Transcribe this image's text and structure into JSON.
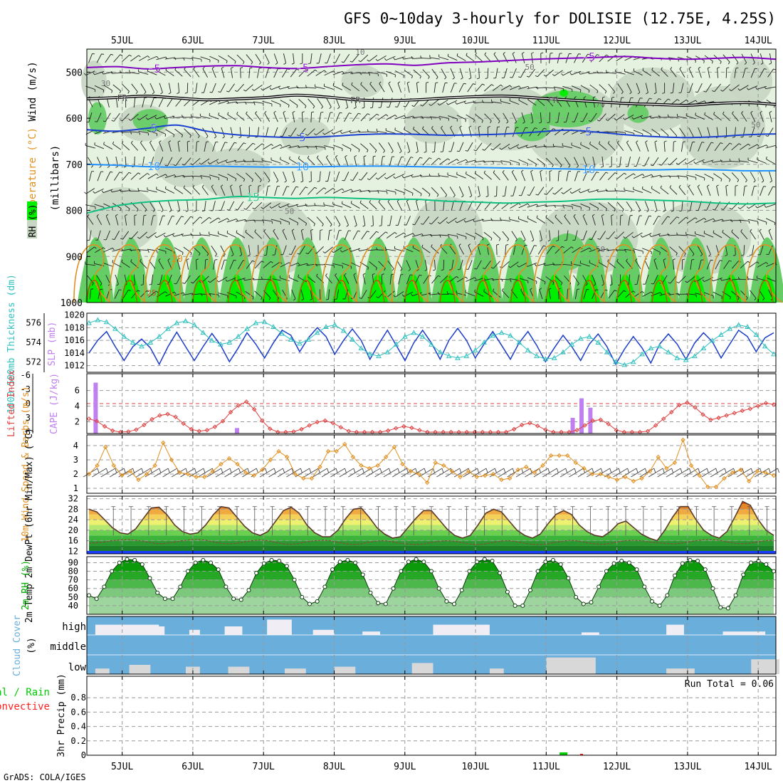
{
  "title": "GFS 0~10day 3-hourly for DOLISIE (12.75E, 4.25S)",
  "credit": "GrADS: COLA/IGES",
  "colors": {
    "rh_light": "#e6f2e0",
    "rh_mid": "#c8d6c4",
    "rh_green": "#66cc66",
    "rh_bright": "#00ee00",
    "t_minus5": "#8000c0",
    "t_fr": "#000000",
    "t_5": "#1a40d0",
    "t_10": "#1e90ff",
    "t_15": "#10c080",
    "t_20": "#e09020",
    "t_25": "#c05010",
    "slp": "#1a3cc8",
    "thickness": "#30c0c0",
    "cape": "#c080f0",
    "lifted": "#e04040",
    "wind10": "#e09020",
    "rh2m": "#00aa00",
    "cloud_bg": "#6aaedc",
    "cloud_fill": "#f0eef4",
    "cloud_low": "#d8d8d8",
    "precip_total": "#00cc00",
    "precip_conv": "#ff2020"
  },
  "chart_data": {
    "time_axis": {
      "start_day": 4.5,
      "end_day": 14.25,
      "step_hours": 3,
      "tick_labels": [
        "5JUL",
        "6JUL",
        "7JUL",
        "8JUL",
        "9JUL",
        "10JUL",
        "11JUL",
        "12JUL",
        "13JUL",
        "14JUL"
      ],
      "tick_days": [
        5,
        6,
        7,
        8,
        9,
        10,
        11,
        12,
        13,
        14
      ]
    },
    "panels": [
      {
        "id": "upper_air",
        "type": "heatmap",
        "ylabel": "(millibars)",
        "legend_labels": [
          "RH (%)",
          "Temperature (°C)",
          "Wind (m/s)"
        ],
        "y_ticks": [
          500,
          600,
          700,
          800,
          900,
          1000
        ],
        "ylim": [
          450,
          1000
        ],
        "rh_contour_labels": [
          "10",
          "30",
          "50",
          "70"
        ],
        "temperature_isotherms": [
          {
            "label": "-5",
            "pressure": [
              490,
              488,
              493,
              490,
              487,
              486,
              490,
              492,
              488,
              484,
              482,
              485,
              480,
              478,
              475,
              472,
              470,
              468,
              466,
              470,
              472,
              470,
              468,
              472
            ]
          },
          {
            "label": "FR",
            "pressure": [
              558,
              555,
              552,
              556,
              560,
              558,
              555,
              550,
              554,
              560,
              562,
              560,
              556,
              553,
              552,
              556,
              560,
              564,
              568,
              570,
              572,
              568,
              566,
              570
            ]
          },
          {
            "label": "5",
            "pressure": [
              625,
              628,
              622,
              615,
              628,
              636,
              640,
              642,
              640,
              636,
              634,
              635,
              637,
              636,
              634,
              630,
              626,
              630,
              636,
              640,
              642,
              640,
              636,
              634
            ]
          },
          {
            "label": "10",
            "pressure": [
              700,
              702,
              705,
              706,
              704,
              705,
              706,
              706,
              705,
              704,
              704,
              705,
              706,
              707,
              708,
              709,
              710,
              712,
              712,
              712,
              711,
              712,
              714,
              714
            ]
          },
          {
            "label": "15",
            "pressure": [
              806,
              790,
              782,
              778,
              776,
              770,
              772,
              774,
              772,
              774,
              776,
              776,
              780,
              782,
              784,
              782,
              780,
              776,
              776,
              778,
              780,
              784,
              786,
              784
            ]
          }
        ],
        "temperature_label_20": "20",
        "temperature_label_25": "25"
      },
      {
        "id": "slp_thickness",
        "type": "line",
        "ylabel_left": "1000-500mb Thickness (dm)",
        "ylabel_right": "SLP (mb)",
        "left_ticks": [
          572,
          574,
          576
        ],
        "right_ticks": [
          1012,
          1014,
          1016,
          1018,
          1020
        ],
        "series": [
          {
            "name": "SLP (mb)",
            "values": [
              1014.0,
              1016.0,
              1017.4,
              1015.0,
              1012.8,
              1015.0,
              1016.2,
              1014.8,
              1012.2,
              1015.0,
              1017.3,
              1015.0,
              1012.8,
              1015.0,
              1017.1,
              1015.2,
              1012.6,
              1014.8,
              1017.2,
              1015.4,
              1013.2,
              1015.6,
              1017.6,
              1016.8,
              1014.2,
              1016.4,
              1018.0,
              1016.6,
              1013.8,
              1016.0,
              1017.8,
              1016.0,
              1013.0,
              1015.4,
              1017.6,
              1015.2,
              1012.8,
              1015.6,
              1017.6,
              1015.6,
              1013.0,
              1016.0,
              1017.9,
              1016.0,
              1013.2,
              1015.4,
              1017.4,
              1015.2,
              1013.0,
              1015.6,
              1017.4,
              1015.2,
              1012.6,
              1014.8,
              1016.8,
              1015.0,
              1012.8,
              1015.4,
              1017.0,
              1015.0,
              1012.2,
              1014.6,
              1016.6,
              1014.8,
              1012.4,
              1015.4,
              1017.0,
              1015.4,
              1013.0,
              1015.6,
              1017.2,
              1015.8,
              1013.2,
              1015.4,
              1017.6,
              1016.6,
              1014.2,
              1016.4,
              1017.2
            ]
          },
          {
            "name": "1000-500mb Thickness (dm)",
            "values": [
              576.0,
              576.3,
              576.1,
              575.4,
              574.6,
              574.0,
              573.6,
              574.0,
              574.6,
              575.4,
              576.0,
              576.2,
              575.8,
              575.0,
              574.2,
              573.8,
              574.0,
              574.6,
              575.4,
              576.0,
              576.1,
              575.6,
              574.9,
              574.3,
              573.9,
              574.3,
              575.0,
              575.6,
              575.8,
              575.2,
              574.3,
              573.4,
              572.8,
              572.6,
              573.0,
              573.8,
              574.6,
              575.0,
              574.6,
              573.8,
              573.0,
              572.6,
              572.4,
              572.6,
              573.2,
              574.0,
              574.7,
              575.0,
              574.7,
              574.0,
              573.2,
              572.6,
              572.3,
              572.4,
              573.0,
              573.8,
              574.4,
              574.6,
              574.0,
              573.0,
              572.0,
              571.7,
              572.0,
              572.8,
              573.4,
              573.6,
              573.0,
              572.4,
              572.2,
              572.6,
              573.4,
              574.2,
              574.8,
              575.4,
              575.8,
              575.6,
              574.8,
              573.6,
              572.8
            ]
          }
        ]
      },
      {
        "id": "cape_li",
        "type": "bar",
        "ylabel_left": "Lifted Index",
        "ylabel_right": "CAPE (J/kg)",
        "left_ticks": [
          "-6",
          "-3",
          "0",
          "3",
          "6"
        ],
        "right_ticks": [
          2,
          4,
          6
        ],
        "series": [
          {
            "name": "CAPE (J/kg)",
            "days": [
              4.625,
              6.625,
              11.375,
              11.5,
              11.625
            ],
            "values": [
              7.0,
              1.2,
              2.5,
              5.0,
              3.8
            ]
          },
          {
            "name": "Lifted Index",
            "values": [
              3.2,
              3.7,
              4.8,
              5.7,
              6.0,
              5.9,
              5.5,
              4.5,
              3.3,
              2.5,
              2.2,
              2.8,
              4.2,
              5.4,
              5.8,
              5.6,
              4.9,
              3.7,
              1.8,
              0.4,
              -0.4,
              1.2,
              3.6,
              5.3,
              6.0,
              6.0,
              5.9,
              5.4,
              4.6,
              3.9,
              3.6,
              4.1,
              5.0,
              5.8,
              6.0,
              6.0,
              6.0,
              6.0,
              5.7,
              5.2,
              4.8,
              5.1,
              5.6,
              6.0,
              6.0,
              6.0,
              6.0,
              6.0,
              6.0,
              6.0,
              6.0,
              6.0,
              6.0,
              6.0,
              5.4,
              4.5,
              4.1,
              4.7,
              5.5,
              6.0,
              6.0,
              6.0,
              5.6,
              4.6,
              3.6,
              3.4,
              4.3,
              5.6,
              6.0,
              6.0,
              6.0,
              5.8,
              4.6,
              3.2,
              1.8,
              0.3,
              -0.2,
              0.8,
              2.3,
              3.4,
              3.0,
              2.5,
              2.0,
              1.5,
              1.1,
              0.5,
              -0.1,
              0.2
            ]
          }
        ]
      },
      {
        "id": "wind10m",
        "type": "line",
        "ylabel": "10m Wind Speed & Barbs (m/s)",
        "y_ticks": [
          1,
          2,
          3,
          4
        ],
        "series": [
          {
            "name": "10m Wind Speed (m/s)",
            "values": [
              2.0,
              2.6,
              3.9,
              2.6,
              1.9,
              2.2,
              1.6,
              2.0,
              2.6,
              4.2,
              3.0,
              2.1,
              2.0,
              1.8,
              1.8,
              2.2,
              2.7,
              3.1,
              2.7,
              2.1,
              1.9,
              2.3,
              3.0,
              3.6,
              3.2,
              2.0,
              1.7,
              1.7,
              2.5,
              3.6,
              3.6,
              4.1,
              3.2,
              2.6,
              2.4,
              2.6,
              3.2,
              3.9,
              2.7,
              2.2,
              2.0,
              1.4,
              2.8,
              2.6,
              2.2,
              1.8,
              2.2,
              1.8,
              1.9,
              2.0,
              1.6,
              1.7,
              2.3,
              2.5,
              2.1,
              2.6,
              3.3,
              3.3,
              3.3,
              2.8,
              2.4,
              2.0,
              2.0,
              1.8,
              1.6,
              1.8,
              1.5,
              1.7,
              2.2,
              3.2,
              2.4,
              2.8,
              4.4,
              2.6,
              1.9,
              1.1,
              1.1,
              1.7,
              2.1,
              2.3,
              1.5,
              2.2,
              2.1,
              1.9
            ]
          }
        ]
      },
      {
        "id": "temp2m",
        "type": "area",
        "ylabel": "2m Temp 2m DewPt (6hr Min/Max) (°C)",
        "y_ticks": [
          12,
          16,
          20,
          24,
          28,
          32
        ],
        "ylim": [
          11,
          33
        ],
        "series": [
          {
            "name": "2m Temp (°C)",
            "values": [
              28.0,
              27.0,
              24.0,
              21.0,
              19.0,
              18.5,
              20.5,
              24.5,
              28.5,
              28.8,
              26.0,
              22.0,
              19.5,
              18.5,
              19.0,
              22.0,
              26.0,
              29.0,
              28.5,
              25.0,
              21.5,
              19.0,
              18.0,
              19.5,
              23.5,
              27.5,
              28.8,
              26.5,
              22.0,
              19.0,
              17.5,
              17.5,
              20.0,
              24.5,
              28.0,
              28.5,
              25.0,
              21.0,
              18.5,
              17.0,
              17.5,
              21.0,
              24.5,
              27.5,
              27.5,
              24.0,
              20.5,
              18.0,
              17.0,
              18.0,
              22.0,
              26.5,
              28.0,
              27.0,
              23.5,
              20.0,
              18.0,
              17.0,
              18.5,
              22.5,
              26.0,
              27.5,
              26.0,
              22.0,
              19.5,
              18.0,
              17.5,
              19.5,
              22.5,
              23.5,
              21.0,
              18.5,
              17.0,
              16.0,
              20.0,
              25.0,
              29.0,
              29.0,
              24.0,
              20.0,
              18.0,
              17.0,
              19.5,
              25.0,
              31.0,
              29.5,
              24.0,
              20.0,
              18.0
            ]
          },
          {
            "name": "2m DewPt (°C)",
            "values": [
              15.0,
              15.2,
              15.5,
              16.0,
              16.3,
              16.5,
              16.2,
              15.8,
              15.2,
              14.8,
              15.0,
              15.5,
              16.0,
              16.4,
              16.5,
              16.2,
              15.5,
              15.0,
              14.8,
              15.0,
              15.6,
              16.0,
              16.3,
              16.0,
              15.3,
              14.8,
              14.6,
              15.0,
              15.6,
              16.0,
              16.2,
              16.0,
              15.4,
              14.8,
              14.5,
              14.8,
              15.4,
              15.9,
              16.0,
              15.6,
              15.0,
              14.7,
              14.5,
              14.8,
              15.3,
              15.8,
              16.0,
              15.8,
              15.2,
              14.7,
              14.5,
              14.8,
              15.4,
              15.9,
              16.0,
              15.6,
              15.0,
              14.6,
              14.5,
              14.8,
              15.4,
              15.9,
              16.2,
              15.8,
              15.2,
              14.8,
              14.6,
              15.0,
              15.6,
              16.0,
              16.2,
              16.0,
              15.5,
              15.2,
              15.0,
              14.8,
              15.0,
              15.5,
              16.0,
              16.4,
              16.5,
              16.2,
              15.6,
              15.0,
              14.8,
              15.1,
              15.6,
              16.0,
              16.3
            ]
          }
        ]
      },
      {
        "id": "rh2m",
        "type": "area",
        "ylabel": "2m RH (%)",
        "y_ticks": [
          40,
          50,
          60,
          70,
          80,
          90
        ],
        "ylim": [
          30,
          97
        ],
        "series": [
          {
            "name": "2m RH (%)",
            "values": [
              52,
              48,
              62,
              80,
              90,
              94,
              93,
              88,
              72,
              55,
              48,
              48,
              62,
              80,
              90,
              93,
              90,
              82,
              62,
              48,
              47,
              58,
              78,
              89,
              93,
              92,
              86,
              70,
              50,
              42,
              45,
              62,
              82,
              91,
              93,
              90,
              76,
              55,
              43,
              42,
              60,
              80,
              91,
              94,
              91,
              80,
              60,
              45,
              42,
              58,
              80,
              91,
              94,
              92,
              78,
              56,
              40,
              40,
              58,
              80,
              91,
              93,
              88,
              72,
              50,
              42,
              44,
              62,
              80,
              89,
              92,
              90,
              82,
              62,
              45,
              40,
              52,
              75,
              89,
              93,
              92,
              82,
              60,
              38,
              37,
              52,
              76,
              90,
              92,
              88,
              80
            ]
          }
        ]
      },
      {
        "id": "cloud",
        "type": "area",
        "ylabel": "Cloud Cover (%)",
        "levels": [
          "high",
          "middle",
          "low"
        ]
      },
      {
        "id": "precip",
        "type": "bar",
        "ylabel": "3hr Precip (mm)",
        "legend_labels": [
          "Total / Rain",
          "Convective"
        ],
        "y_ticks": [
          "0",
          "0.2",
          "0.4",
          "0.6",
          "0.8"
        ],
        "ylim": [
          0,
          1
        ],
        "run_total_label": "Run Total = 0.06",
        "series": [
          {
            "name": "Total / Rain",
            "days": [
              11.25
            ],
            "values": [
              0.04
            ]
          },
          {
            "name": "Convective",
            "days": [
              11.5
            ],
            "values": [
              0.02
            ]
          }
        ]
      }
    ]
  }
}
